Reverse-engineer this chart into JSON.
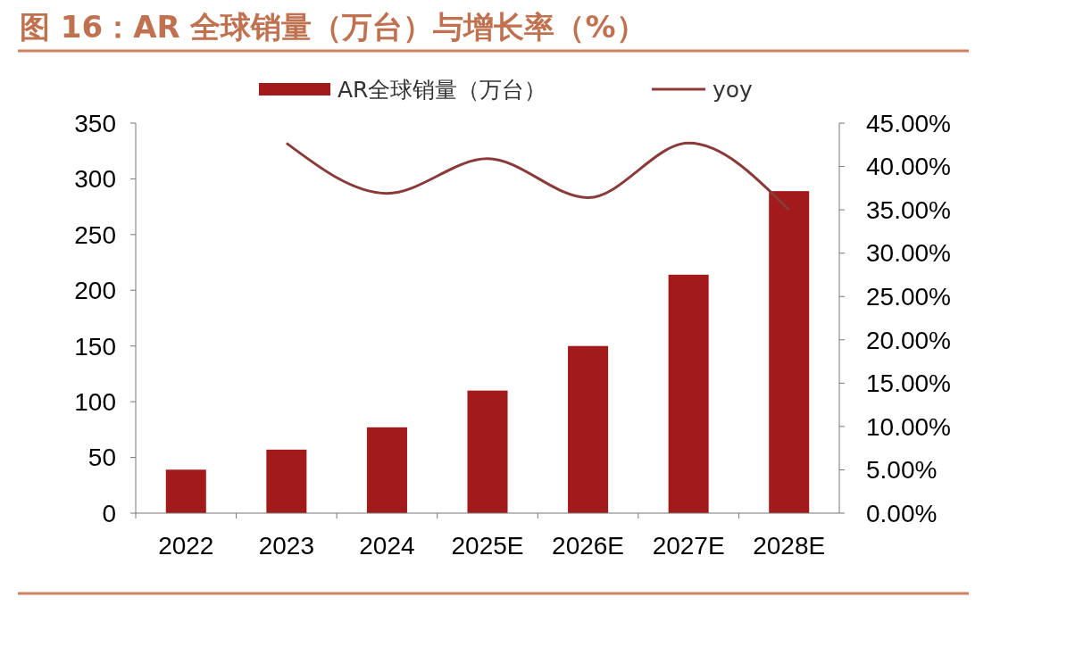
{
  "chart_data": {
    "type": "bar",
    "title": "图 16：AR 全球销量（万台）与增长率（%）",
    "categories": [
      "2022",
      "2023",
      "2024",
      "2025E",
      "2026E",
      "2027E",
      "2028E"
    ],
    "series": [
      {
        "name": "AR全球销量（万台）",
        "color": "#a31a1a",
        "values": [
          39,
          57,
          77,
          110,
          150,
          214,
          289
        ]
      },
      {
        "name": "yoy",
        "type": "line",
        "axis": "y2",
        "color": "#8b3a3a",
        "values": [
          null,
          42.7,
          36.9,
          40.9,
          36.4,
          42.7,
          35.0
        ]
      }
    ],
    "ylim": [
      0,
      350
    ],
    "yticks": [
      0,
      50,
      100,
      150,
      200,
      250,
      300,
      350
    ],
    "y2lim": [
      0,
      45
    ],
    "y2ticks": [
      {
        "value": 0,
        "label": "0.00%"
      },
      {
        "value": 5,
        "label": "5.00%"
      },
      {
        "value": 10,
        "label": "10.00%"
      },
      {
        "value": 15,
        "label": "15.00%"
      },
      {
        "value": 20,
        "label": "20.00%"
      },
      {
        "value": 25,
        "label": "25.00%"
      },
      {
        "value": 30,
        "label": "30.00%"
      },
      {
        "value": 35,
        "label": "35.00%"
      },
      {
        "value": 40,
        "label": "40.00%"
      },
      {
        "value": 45,
        "label": "45.00%"
      }
    ],
    "legend": "top",
    "grid": false,
    "marker": "none",
    "line_style": "solid"
  }
}
